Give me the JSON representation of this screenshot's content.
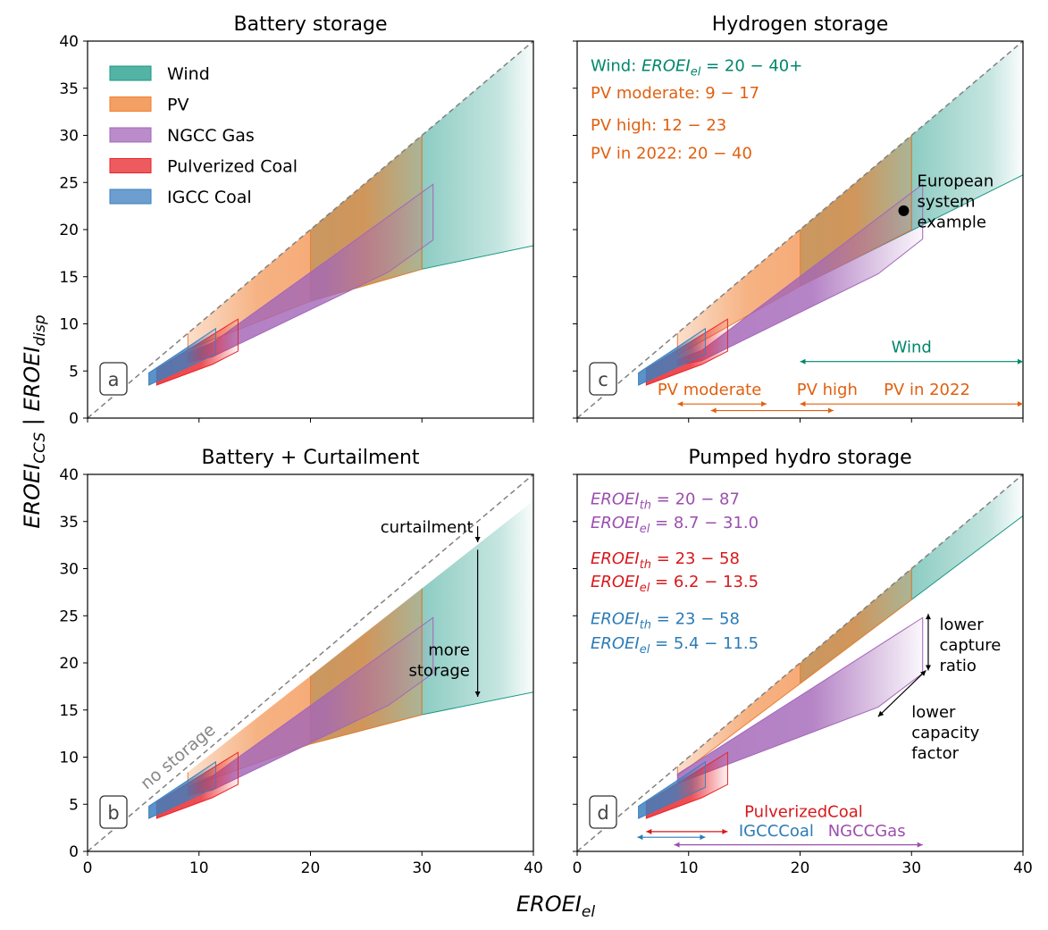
{
  "figure": {
    "ylabel_main": "EROEI",
    "ylabel_sub1": "CCS",
    "ylabel_sep": " | ",
    "ylabel_main2": "EROEI",
    "ylabel_sub2": "disp",
    "xlabel_main": "EROEI",
    "xlabel_sub": "el"
  },
  "colors": {
    "wind": "#1a9985",
    "pv": "#f07f30",
    "ngcc": "#a366b8",
    "coal": "#e8242a",
    "igcc": "#3b7fc0",
    "wind_text": "#00876c",
    "pv_text": "#e06010",
    "ngcc_text": "#9b4fae",
    "coal_text": "#d7191c",
    "igcc_text": "#2c7bb6"
  },
  "legend": {
    "position": "top-left of panel a",
    "entries": [
      "Wind",
      "PV",
      "NGCC Gas",
      "Pulverized Coal",
      "IGCC Coal"
    ]
  },
  "chart_data": [
    {
      "type": "area",
      "panel": "a",
      "title": "Battery storage",
      "xlim": [
        0,
        40
      ],
      "ylim": [
        0,
        40
      ],
      "xticks": [
        0,
        10,
        20,
        30,
        40
      ],
      "yticks": [
        0,
        5,
        10,
        15,
        20,
        25,
        30,
        35,
        40
      ],
      "diagonal": true,
      "series": [
        {
          "name": "Wind",
          "x_range": [
            20,
            40
          ],
          "upper": [
            [
              20,
              20
            ],
            [
              40,
              40
            ]
          ],
          "lower": [
            [
              20,
              12.4
            ],
            [
              30,
              15.8
            ],
            [
              40,
              18.3
            ]
          ],
          "markers_x": [
            20,
            30
          ]
        },
        {
          "name": "PV",
          "x_range": [
            9,
            30
          ],
          "upper": [
            [
              9,
              9
            ],
            [
              30,
              30
            ]
          ],
          "lower": [
            [
              9,
              7.3
            ],
            [
              20,
              12.4
            ],
            [
              30,
              15.8
            ]
          ],
          "markers_x": [
            9,
            20,
            30
          ]
        },
        {
          "name": "NGCC Gas",
          "outline": [
            [
              9,
              6.9
            ],
            [
              11.2,
              8.0
            ],
            [
              31,
              24.8
            ],
            [
              31,
              18.9
            ],
            [
              27,
              15.5
            ],
            [
              11.2,
              6.5
            ],
            [
              9,
              5.9
            ]
          ]
        },
        {
          "name": "Pulverized Coal",
          "outline": [
            [
              6.2,
              3.8
            ],
            [
              6.2,
              5.2
            ],
            [
              13.5,
              10.5
            ],
            [
              13.5,
              7.1
            ],
            [
              11.2,
              5.7
            ],
            [
              6.2,
              3.5
            ]
          ]
        },
        {
          "name": "IGCC Coal",
          "outline": [
            [
              5.5,
              3.7
            ],
            [
              5.5,
              4.8
            ],
            [
              11.5,
              9.5
            ],
            [
              11.5,
              6.8
            ],
            [
              5.5,
              3.5
            ]
          ]
        }
      ],
      "panel_label": "a"
    },
    {
      "type": "area",
      "panel": "c",
      "title": "Hydrogen storage",
      "xlim": [
        0,
        40
      ],
      "ylim": [
        0,
        40
      ],
      "xticks": [
        0,
        10,
        20,
        30,
        40
      ],
      "yticks": [
        0,
        5,
        10,
        15,
        20,
        25,
        30,
        35,
        40
      ],
      "diagonal": true,
      "series": [
        {
          "name": "Wind",
          "x_range": [
            20,
            40
          ],
          "upper": [
            [
              20,
              20
            ],
            [
              40,
              40
            ]
          ],
          "lower": [
            [
              20,
              14
            ],
            [
              40,
              25.8
            ]
          ],
          "markers_x": [
            20,
            30
          ]
        },
        {
          "name": "PV",
          "x_range": [
            9,
            30
          ],
          "upper": [
            [
              9,
              9
            ],
            [
              30,
              30
            ]
          ],
          "lower": [
            [
              9,
              6.7
            ],
            [
              20,
              14
            ],
            [
              30,
              20
            ]
          ],
          "markers_x": [
            9,
            20,
            30
          ]
        },
        {
          "name": "NGCC Gas",
          "outline": [
            [
              9,
              6.2
            ],
            [
              11.2,
              7.2
            ],
            [
              31,
              24.8
            ],
            [
              31,
              19
            ],
            [
              27,
              15.3
            ],
            [
              11.2,
              6.1
            ],
            [
              9,
              5.6
            ]
          ]
        },
        {
          "name": "Pulverized Coal",
          "outline": [
            [
              6.2,
              3.8
            ],
            [
              6.2,
              5.2
            ],
            [
              13.5,
              10.5
            ],
            [
              13.5,
              7.1
            ],
            [
              11.2,
              5.7
            ],
            [
              6.2,
              3.5
            ]
          ]
        },
        {
          "name": "IGCC Coal",
          "outline": [
            [
              5.5,
              3.7
            ],
            [
              5.5,
              4.8
            ],
            [
              11.5,
              9.5
            ],
            [
              11.5,
              6.8
            ],
            [
              5.5,
              3.5
            ]
          ]
        }
      ],
      "point": {
        "x": 29.3,
        "y": 22,
        "label_lines": [
          "European",
          "system",
          "example"
        ]
      },
      "texts": [
        {
          "key": "wind",
          "prefix": "Wind: ",
          "main": "EROEI",
          "sub": "el",
          "suffix": " = 20 − 40+",
          "color": "wind_text"
        },
        {
          "key": "pvmod",
          "text": "PV moderate: 9 − 17",
          "color": "pv_text"
        },
        {
          "key": "pvhigh",
          "text": "PV high: 12 − 23",
          "color": "pv_text"
        },
        {
          "key": "pv2022",
          "text": "PV in 2022: 20 − 40",
          "color": "pv_text"
        }
      ],
      "ranges": [
        {
          "label": "Wind",
          "x": [
            20,
            40
          ],
          "y": 6,
          "color": "wind_text"
        },
        {
          "label": "PV moderate",
          "x": [
            9,
            17
          ],
          "y": 1.5,
          "color": "pv_text"
        },
        {
          "label": "PV high",
          "x": [
            12,
            23
          ],
          "y": 0.8,
          "color": "pv_text"
        },
        {
          "label": "PV in 2022",
          "x": [
            20,
            40
          ],
          "y": 1.5,
          "color": "pv_text"
        }
      ],
      "panel_label": "c"
    },
    {
      "type": "area",
      "panel": "b",
      "title": "Battery + Curtailment",
      "xlim": [
        0,
        40
      ],
      "ylim": [
        0,
        40
      ],
      "xticks": [
        0,
        10,
        20,
        30,
        40
      ],
      "yticks": [
        0,
        5,
        10,
        15,
        20,
        25,
        30,
        35,
        40
      ],
      "diagonal": true,
      "diagonal_label": "no storage",
      "series": [
        {
          "name": "Wind",
          "x_range": [
            20,
            40
          ],
          "upper": [
            [
              20,
              18.6
            ],
            [
              40,
              37.2
            ]
          ],
          "lower": [
            [
              20,
              11.4
            ],
            [
              30,
              14.5
            ],
            [
              40,
              16.9
            ]
          ],
          "markers_x": [
            20,
            30
          ]
        },
        {
          "name": "PV",
          "x_range": [
            9,
            30
          ],
          "upper": [
            [
              9,
              8.4
            ],
            [
              30,
              27.9
            ]
          ],
          "lower": [
            [
              9,
              6.8
            ],
            [
              20,
              11.4
            ],
            [
              30,
              14.5
            ]
          ],
          "markers_x": [
            9,
            20,
            30
          ]
        },
        {
          "name": "NGCC Gas",
          "outline": [
            [
              9,
              6.9
            ],
            [
              11.2,
              8.0
            ],
            [
              31,
              24.8
            ],
            [
              31,
              18.9
            ],
            [
              27,
              15.5
            ],
            [
              11.2,
              6.5
            ],
            [
              9,
              5.9
            ]
          ]
        },
        {
          "name": "Pulverized Coal",
          "outline": [
            [
              6.2,
              3.8
            ],
            [
              6.2,
              5.2
            ],
            [
              13.5,
              10.5
            ],
            [
              13.5,
              7.1
            ],
            [
              11.2,
              5.7
            ],
            [
              6.2,
              3.5
            ]
          ]
        },
        {
          "name": "IGCC Coal",
          "outline": [
            [
              5.5,
              3.7
            ],
            [
              5.5,
              4.8
            ],
            [
              11.5,
              9.5
            ],
            [
              11.5,
              6.8
            ],
            [
              5.5,
              3.5
            ]
          ]
        }
      ],
      "annotations": [
        {
          "text": "curtailment",
          "arrow": {
            "x": 35,
            "y1": 34.5,
            "y2": 32.8
          }
        },
        {
          "text_lines": [
            "more",
            "storage"
          ],
          "arrow": {
            "x": 35,
            "y1": 32,
            "y2": 16.4
          }
        }
      ],
      "panel_label": "b"
    },
    {
      "type": "area",
      "panel": "d",
      "title": "Pumped hydro storage",
      "xlim": [
        0,
        40
      ],
      "ylim": [
        0,
        40
      ],
      "xticks": [
        0,
        10,
        20,
        30,
        40
      ],
      "yticks": [
        0,
        5,
        10,
        15,
        20,
        25,
        30,
        35,
        40
      ],
      "diagonal": true,
      "series": [
        {
          "name": "Wind",
          "x_range": [
            20,
            40
          ],
          "upper": [
            [
              20,
              20
            ],
            [
              40,
              40
            ]
          ],
          "lower": [
            [
              20,
              17.8
            ],
            [
              40,
              35.6
            ]
          ],
          "markers_x": [
            20,
            30
          ]
        },
        {
          "name": "PV",
          "x_range": [
            9,
            30
          ],
          "upper": [
            [
              9,
              9
            ],
            [
              30,
              30
            ]
          ],
          "lower": [
            [
              9,
              8
            ],
            [
              30,
              26.7
            ]
          ],
          "markers_x": [
            9,
            20,
            30
          ]
        },
        {
          "name": "NGCC Gas",
          "outline": [
            [
              9,
              8.2
            ],
            [
              31,
              24.8
            ],
            [
              31,
              18.9
            ],
            [
              27,
              15.3
            ],
            [
              9,
              7.2
            ]
          ]
        },
        {
          "name": "Pulverized Coal",
          "outline": [
            [
              6.2,
              3.8
            ],
            [
              6.2,
              5.2
            ],
            [
              13.5,
              10.5
            ],
            [
              13.5,
              7.1
            ],
            [
              11.2,
              5.7
            ],
            [
              6.2,
              3.5
            ]
          ]
        },
        {
          "name": "IGCC Coal",
          "outline": [
            [
              5.5,
              3.7
            ],
            [
              5.5,
              4.8
            ],
            [
              11.5,
              9.5
            ],
            [
              11.5,
              6.8
            ],
            [
              5.5,
              3.5
            ]
          ]
        }
      ],
      "texts": [
        {
          "main": "EROEI",
          "sub": "th",
          "suffix": " = 20 − 87",
          "color": "ngcc_text"
        },
        {
          "main": "EROEI",
          "sub": "el",
          "suffix": " = 8.7 − 31.0",
          "color": "ngcc_text"
        },
        {
          "main": "EROEI",
          "sub": "th",
          "suffix": " = 23 − 58",
          "color": "coal_text"
        },
        {
          "main": "EROEI",
          "sub": "el",
          "suffix": " = 6.2 − 13.5",
          "color": "coal_text"
        },
        {
          "main": "EROEI",
          "sub": "th",
          "suffix": " = 23 − 58",
          "color": "igcc_text"
        },
        {
          "main": "EROEI",
          "sub": "el",
          "suffix": " = 5.4 − 11.5",
          "color": "igcc_text"
        }
      ],
      "annotations": [
        {
          "text_lines": [
            "lower",
            "capture",
            "ratio"
          ]
        },
        {
          "text_lines": [
            "lower",
            "capacity",
            "factor"
          ]
        }
      ],
      "ranges": [
        {
          "label": "PulverizedCoal",
          "x": [
            6.2,
            13.5
          ],
          "y": 2.1,
          "color": "coal_text"
        },
        {
          "label": "IGCCCoal",
          "x": [
            5.4,
            11.5
          ],
          "y": 1.5,
          "color": "igcc_text"
        },
        {
          "label": "NGCCGas",
          "x": [
            8.7,
            31
          ],
          "y": 0.7,
          "color": "ngcc_text"
        }
      ],
      "panel_label": "d"
    }
  ]
}
